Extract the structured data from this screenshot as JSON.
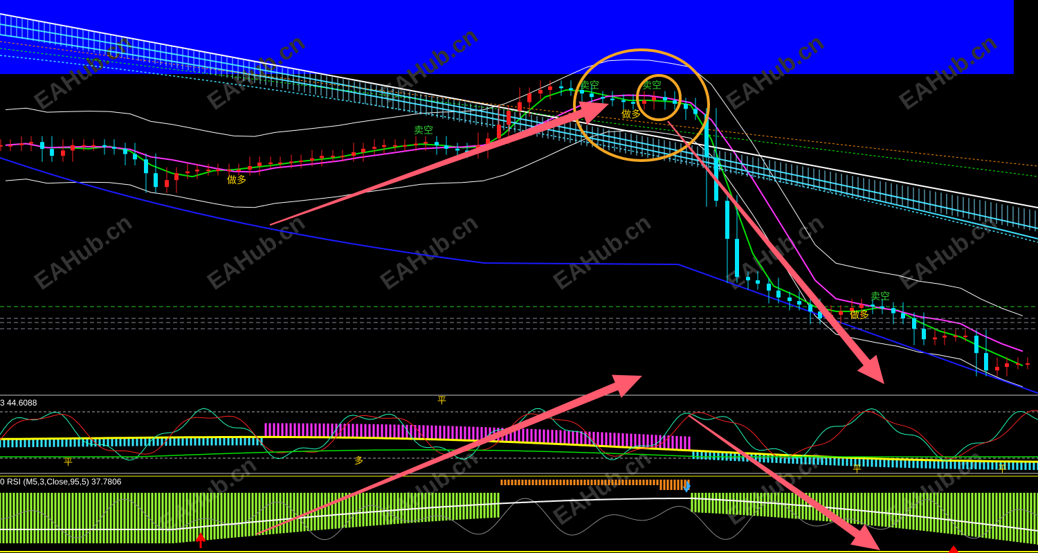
{
  "chart_data": {
    "type": "candlestick",
    "main": {
      "closes": [
        63.2,
        64.0,
        60.5,
        63.2,
        63.2,
        62.3,
        59.6,
        52.6,
        56.1,
        57.0,
        57.0,
        57.0,
        58.8,
        58.8,
        59.3,
        60.5,
        60.5,
        62.3,
        63.2,
        63.2,
        64.0,
        62.3,
        61.4,
        64.9,
        71.9,
        76.3,
        78.1,
        77.2,
        75.4,
        74.6,
        73.7,
        75.4,
        73.7,
        71.1,
        49.1,
        29.8,
        28.1,
        24.6,
        22.8,
        19.3,
        21.1,
        22.8,
        21.9,
        19.3,
        14.0,
        14.9,
        14.9,
        6.1,
        7.9,
        7.9
      ],
      "signals": [
        {
          "index": 11,
          "text": "做多",
          "color": "#ffd700"
        },
        {
          "index": 20,
          "text": "卖空",
          "color": "#33cc33"
        },
        {
          "index": 28,
          "text": "卖空",
          "color": "#33cc33"
        },
        {
          "index": 30,
          "text": "做多",
          "color": "#ffd700"
        },
        {
          "index": 31,
          "text": "卖空",
          "color": "#33cc33"
        },
        {
          "index": 41,
          "text": "做多",
          "color": "#ffd700"
        },
        {
          "index": 42,
          "text": "卖空",
          "color": "#33cc33"
        }
      ],
      "up_color": "#ff2020",
      "down_color": "#00e5ff"
    },
    "oscillator": {
      "label": "3 44.6088",
      "marks": [
        {
          "index": 3,
          "text": "平"
        },
        {
          "index": 17,
          "text": "多"
        },
        {
          "index": 21,
          "text": "平"
        },
        {
          "index": 41,
          "text": "平"
        },
        {
          "index": 48,
          "text": "平"
        }
      ]
    },
    "rsi": {
      "label": "0  RSI (M5,3,Close,95,5) 37.7806",
      "histogram_color": "#99ff33",
      "highlight_color": "#ff8c1a"
    },
    "watermark": "EAHub.cn",
    "colors": {
      "header_band": "#0000ff",
      "annotation_arrow": "#ff5a6e",
      "annotation_circle": "#f5a623"
    }
  }
}
